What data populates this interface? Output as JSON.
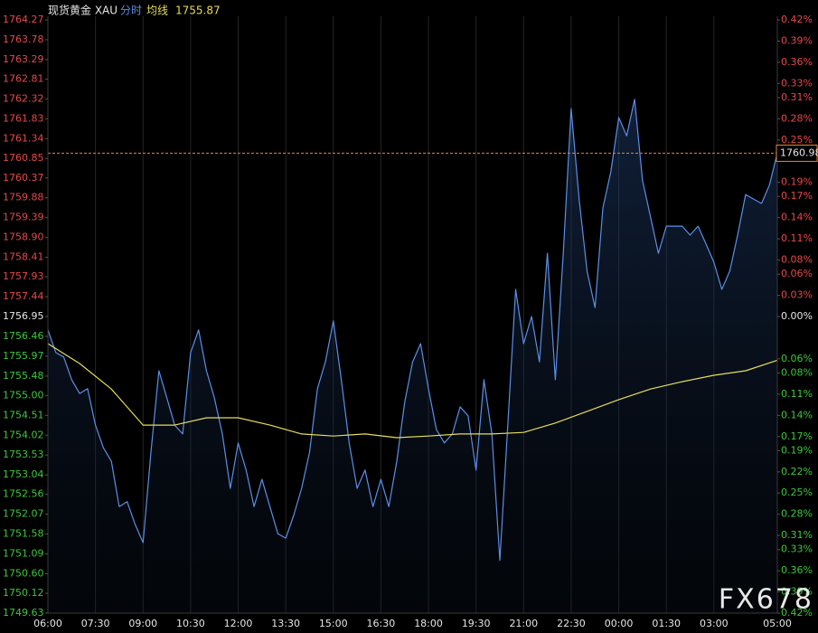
{
  "chart_data": {
    "type": "line",
    "header": {
      "instrument": "现货黄金 XAU",
      "line_label": "分时",
      "avg_label": "均线"
    },
    "watermark": "FX678",
    "x": [
      0,
      15,
      30,
      45,
      60,
      75,
      90,
      105,
      120,
      135,
      150,
      165,
      180,
      195,
      210,
      225,
      240,
      255,
      270,
      285,
      300,
      315,
      330,
      345,
      360,
      375,
      390,
      405,
      420,
      435,
      450,
      465,
      480,
      495,
      510,
      525,
      540,
      555,
      570,
      585,
      600,
      615,
      630,
      645,
      660,
      675,
      690,
      705,
      720,
      735,
      750,
      765,
      780,
      795,
      810,
      825,
      840,
      855,
      870,
      885,
      900,
      915,
      930,
      945,
      960,
      975,
      990,
      1005,
      1020,
      1035,
      1050,
      1065,
      1080,
      1095,
      1110,
      1125,
      1140,
      1155,
      1170,
      1185,
      1200,
      1215,
      1230,
      1245,
      1260,
      1275,
      1290,
      1305,
      1320,
      1335,
      1350,
      1365,
      1380
    ],
    "series": [
      {
        "name": "分时",
        "color": "#5b8fe6",
        "values": [
          1756.62,
          1756.06,
          1755.95,
          1755.39,
          1755.05,
          1755.17,
          1754.27,
          1753.71,
          1753.38,
          1752.26,
          1752.38,
          1751.82,
          1751.37,
          1753.6,
          1755.61,
          1754.94,
          1754.27,
          1754.05,
          1756.06,
          1756.62,
          1755.61,
          1754.94,
          1754.05,
          1752.71,
          1753.83,
          1753.16,
          1752.26,
          1752.93,
          1752.26,
          1751.59,
          1751.48,
          1752.04,
          1752.71,
          1753.6,
          1755.17,
          1755.83,
          1756.84,
          1755.39,
          1753.83,
          1752.71,
          1753.16,
          1752.26,
          1752.93,
          1752.26,
          1753.38,
          1754.83,
          1755.83,
          1756.28,
          1755.17,
          1754.16,
          1753.83,
          1754.05,
          1754.72,
          1754.5,
          1753.16,
          1755.39,
          1754.05,
          1750.93,
          1754.27,
          1757.62,
          1756.28,
          1756.95,
          1755.83,
          1758.51,
          1755.39,
          1758.51,
          1762.08,
          1759.85,
          1758.07,
          1757.17,
          1759.63,
          1760.52,
          1761.86,
          1761.41,
          1762.31,
          1760.3,
          1759.41,
          1758.51,
          1759.18,
          1759.18,
          1759.18,
          1758.96,
          1759.18,
          1758.74,
          1758.29,
          1757.62,
          1758.07,
          1758.96,
          1759.96,
          1759.85,
          1759.74,
          1760.19,
          1760.98
        ]
      },
      {
        "name": "均线",
        "color": "#e6dc5a",
        "x": [
          0,
          60,
          120,
          180,
          240,
          300,
          360,
          420,
          480,
          540,
          600,
          660,
          720,
          780,
          840,
          900,
          960,
          1020,
          1080,
          1140,
          1200,
          1260,
          1320,
          1380
        ],
        "values": [
          1756.28,
          1755.79,
          1755.16,
          1754.27,
          1754.27,
          1754.45,
          1754.45,
          1754.27,
          1754.05,
          1754.0,
          1754.05,
          1753.96,
          1754.0,
          1754.05,
          1754.05,
          1754.09,
          1754.32,
          1754.61,
          1754.9,
          1755.16,
          1755.34,
          1755.5,
          1755.61,
          1755.87
        ]
      }
    ],
    "last_price_color": "#e8843c",
    "xlim": [
      0,
      1380
    ],
    "xticks": [
      {
        "value": 0,
        "label": "06:00"
      },
      {
        "value": 90,
        "label": "07:30"
      },
      {
        "value": 180,
        "label": "09:00"
      },
      {
        "value": 270,
        "label": "10:30"
      },
      {
        "value": 360,
        "label": "12:00"
      },
      {
        "value": 450,
        "label": "13:30"
      },
      {
        "value": 540,
        "label": "15:00"
      },
      {
        "value": 630,
        "label": "16:30"
      },
      {
        "value": 720,
        "label": "18:00"
      },
      {
        "value": 810,
        "label": "19:30"
      },
      {
        "value": 900,
        "label": "21:00"
      },
      {
        "value": 990,
        "label": "22:30"
      },
      {
        "value": 1080,
        "label": "00:00"
      },
      {
        "value": 1170,
        "label": "01:30"
      },
      {
        "value": 1260,
        "label": "03:00"
      },
      {
        "value": 1380,
        "label": "05:00"
      }
    ],
    "ylim": [
      1749.63,
      1764.27
    ],
    "yticks": [
      1764.27,
      1763.78,
      1763.29,
      1762.81,
      1762.32,
      1761.83,
      1761.34,
      1760.85,
      1760.37,
      1759.88,
      1759.39,
      {
        "value": 1758.9,
        "label": "1758.90"
      },
      1758.41,
      1757.93,
      1757.44,
      1756.95,
      1756.46,
      1755.97,
      1755.48,
      {
        "value": 1755,
        "label": "1755.00"
      },
      1754.51,
      1754.02,
      1753.53,
      1753.04,
      1752.56,
      1752.07,
      1751.58,
      1751.09,
      {
        "value": 1750.6,
        "label": "1750.60"
      },
      1750.12,
      1749.63
    ],
    "y2lim": [
      -0.42,
      0.42
    ],
    "y2ticks": [
      {
        "value": 0.42,
        "label": "0.42%"
      },
      {
        "value": 0.39,
        "label": "0.39%"
      },
      {
        "value": 0.36,
        "label": "0.36%"
      },
      {
        "value": 0.33,
        "label": "0.33%"
      },
      {
        "value": 0.31,
        "label": "0.31%"
      },
      {
        "value": 0.28,
        "label": "0.28%"
      },
      {
        "value": 0.25,
        "label": "0.25%"
      },
      {
        "value": 0.19,
        "label": "0.19%"
      },
      {
        "value": 0.17,
        "label": "0.17%"
      },
      {
        "value": 0.14,
        "label": "0.14%"
      },
      {
        "value": 0.11,
        "label": "0.11%"
      },
      {
        "value": 0.08,
        "label": "0.08%"
      },
      {
        "value": 0.06,
        "label": "0.06%"
      },
      {
        "value": 0.03,
        "label": "0.03%"
      },
      {
        "value": 0,
        "label": "0.00%"
      },
      {
        "value": -0.06,
        "label": "0.06%"
      },
      {
        "value": -0.08,
        "label": "0.08%"
      },
      {
        "value": -0.11,
        "label": "0.11%"
      },
      {
        "value": -0.14,
        "label": "0.14%"
      },
      {
        "value": -0.17,
        "label": "0.17%"
      },
      {
        "value": -0.19,
        "label": "0.19%"
      },
      {
        "value": -0.22,
        "label": "0.22%"
      },
      {
        "value": -0.25,
        "label": "0.25%"
      },
      {
        "value": -0.28,
        "label": "0.28%"
      },
      {
        "value": -0.31,
        "label": "0.31%"
      },
      {
        "value": -0.33,
        "label": "0.33%"
      },
      {
        "value": -0.36,
        "label": "0.36%"
      },
      {
        "value": -0.39,
        "label": "0.39%"
      },
      {
        "value": -0.42,
        "label": "0.42%"
      }
    ],
    "up_color": "#e84848",
    "down_color": "#3cc83c",
    "grid": true
  }
}
